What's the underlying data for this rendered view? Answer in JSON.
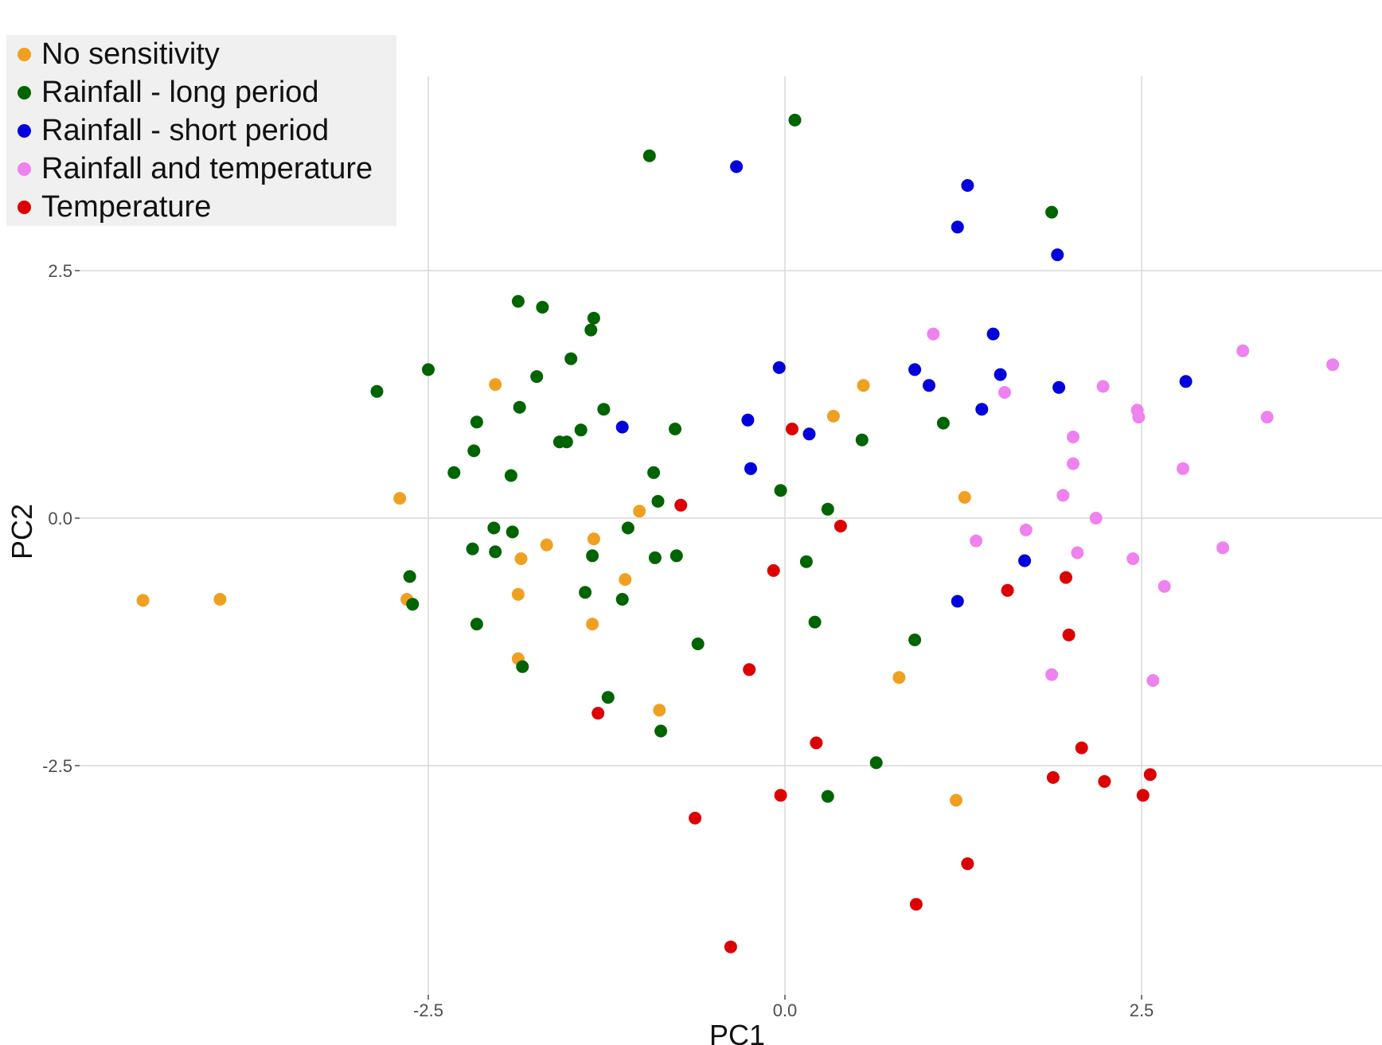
{
  "chart_data": {
    "type": "scatter",
    "title": "",
    "xlabel": "PC1",
    "ylabel": "PC2",
    "xlim": [
      -4.5,
      4.2
    ],
    "ylim": [
      -4.5,
      4.5
    ],
    "x_ticks": [
      -2.5,
      0.0,
      2.5
    ],
    "x_tick_labels": [
      "-2.5",
      "0.0",
      "2.5"
    ],
    "y_ticks": [
      2.5,
      0.0,
      -2.5
    ],
    "y_tick_labels": [
      "2.5",
      "0.0",
      "-2.5"
    ],
    "grid": true,
    "legend_position": "top-left",
    "series": [
      {
        "name": "No sensitivity",
        "color": "#f0a020",
        "points": [
          [
            -4.5,
            -0.83
          ],
          [
            -3.96,
            -0.82
          ],
          [
            -2.7,
            0.2
          ],
          [
            -2.65,
            -0.82
          ],
          [
            -2.03,
            1.35
          ],
          [
            -1.85,
            -0.41
          ],
          [
            -1.87,
            -0.77
          ],
          [
            -1.87,
            -1.42
          ],
          [
            -1.67,
            -0.27
          ],
          [
            -1.34,
            -0.21
          ],
          [
            -1.35,
            -1.07
          ],
          [
            -1.12,
            -0.62
          ],
          [
            -1.02,
            0.07
          ],
          [
            -0.88,
            -1.94
          ],
          [
            0.34,
            1.03
          ],
          [
            0.55,
            1.34
          ],
          [
            0.8,
            -1.61
          ],
          [
            1.26,
            0.21
          ],
          [
            1.2,
            -2.85
          ]
        ]
      },
      {
        "name": "Rainfall - long period",
        "color": "#006400",
        "points": [
          [
            0.07,
            4.02
          ],
          [
            -0.95,
            3.66
          ],
          [
            1.87,
            3.09
          ],
          [
            -1.87,
            2.19
          ],
          [
            -1.7,
            2.13
          ],
          [
            -1.34,
            2.02
          ],
          [
            -1.36,
            1.9
          ],
          [
            -1.5,
            1.61
          ],
          [
            -1.74,
            1.43
          ],
          [
            -2.86,
            1.28
          ],
          [
            -2.5,
            1.5
          ],
          [
            -1.86,
            1.12
          ],
          [
            -1.27,
            1.1
          ],
          [
            -2.16,
            0.97
          ],
          [
            -1.43,
            0.89
          ],
          [
            -1.58,
            0.77
          ],
          [
            -1.53,
            0.77
          ],
          [
            -0.77,
            0.9
          ],
          [
            -2.18,
            0.68
          ],
          [
            -2.32,
            0.46
          ],
          [
            -1.92,
            0.43
          ],
          [
            -0.92,
            0.46
          ],
          [
            -0.89,
            0.17
          ],
          [
            -2.04,
            -0.1
          ],
          [
            -1.91,
            -0.14
          ],
          [
            -1.1,
            -0.1
          ],
          [
            -2.19,
            -0.31
          ],
          [
            -2.03,
            -0.34
          ],
          [
            -1.35,
            -0.38
          ],
          [
            -0.91,
            -0.4
          ],
          [
            -0.76,
            -0.38
          ],
          [
            -2.63,
            -0.59
          ],
          [
            -2.61,
            -0.87
          ],
          [
            -1.4,
            -0.75
          ],
          [
            -1.14,
            -0.82
          ],
          [
            -2.16,
            -1.07
          ],
          [
            -1.84,
            -1.5
          ],
          [
            -1.24,
            -1.81
          ],
          [
            -0.87,
            -2.15
          ],
          [
            -0.61,
            -1.27
          ],
          [
            0.15,
            -0.44
          ],
          [
            0.21,
            -1.05
          ],
          [
            0.3,
            0.09
          ],
          [
            -0.03,
            0.28
          ],
          [
            0.54,
            0.79
          ],
          [
            1.11,
            0.96
          ],
          [
            0.91,
            -1.23
          ],
          [
            0.64,
            -2.47
          ],
          [
            0.3,
            -2.81
          ]
        ]
      },
      {
        "name": "Rainfall - short period",
        "color": "#0000dd",
        "points": [
          [
            -0.34,
            3.55
          ],
          [
            1.28,
            3.36
          ],
          [
            1.21,
            2.94
          ],
          [
            1.91,
            2.66
          ],
          [
            1.46,
            1.86
          ],
          [
            -0.04,
            1.52
          ],
          [
            0.91,
            1.5
          ],
          [
            1.51,
            1.45
          ],
          [
            1.01,
            1.34
          ],
          [
            1.92,
            1.32
          ],
          [
            2.81,
            1.38
          ],
          [
            1.38,
            1.1
          ],
          [
            -0.26,
            0.99
          ],
          [
            -1.14,
            0.92
          ],
          [
            0.17,
            0.85
          ],
          [
            -0.24,
            0.5
          ],
          [
            1.68,
            -0.43
          ],
          [
            1.21,
            -0.84
          ]
        ]
      },
      {
        "name": "Rainfall and temperature",
        "color": "#ee82ee",
        "points": [
          [
            1.04,
            1.86
          ],
          [
            3.21,
            1.69
          ],
          [
            3.84,
            1.55
          ],
          [
            1.54,
            1.27
          ],
          [
            2.23,
            1.33
          ],
          [
            2.47,
            1.09
          ],
          [
            2.48,
            1.02
          ],
          [
            3.38,
            1.02
          ],
          [
            2.02,
            0.82
          ],
          [
            2.02,
            0.55
          ],
          [
            2.79,
            0.5
          ],
          [
            1.95,
            0.23
          ],
          [
            2.18,
            0.0
          ],
          [
            1.69,
            -0.12
          ],
          [
            1.34,
            -0.23
          ],
          [
            2.05,
            -0.35
          ],
          [
            2.44,
            -0.41
          ],
          [
            3.07,
            -0.3
          ],
          [
            2.66,
            -0.69
          ],
          [
            1.87,
            -1.58
          ],
          [
            2.58,
            -1.64
          ]
        ]
      },
      {
        "name": "Temperature",
        "color": "#dd0000",
        "points": [
          [
            0.05,
            0.9
          ],
          [
            -0.73,
            0.13
          ],
          [
            0.39,
            -0.08
          ],
          [
            -0.08,
            -0.53
          ],
          [
            1.56,
            -0.73
          ],
          [
            1.97,
            -0.6
          ],
          [
            1.99,
            -1.18
          ],
          [
            -0.25,
            -1.53
          ],
          [
            -1.31,
            -1.97
          ],
          [
            0.22,
            -2.27
          ],
          [
            2.08,
            -2.32
          ],
          [
            1.88,
            -2.62
          ],
          [
            2.24,
            -2.66
          ],
          [
            2.56,
            -2.59
          ],
          [
            2.51,
            -2.8
          ],
          [
            -0.03,
            -2.8
          ],
          [
            -0.63,
            -3.03
          ],
          [
            1.28,
            -3.49
          ],
          [
            0.92,
            -3.9
          ],
          [
            -0.38,
            -4.33
          ]
        ]
      }
    ]
  }
}
